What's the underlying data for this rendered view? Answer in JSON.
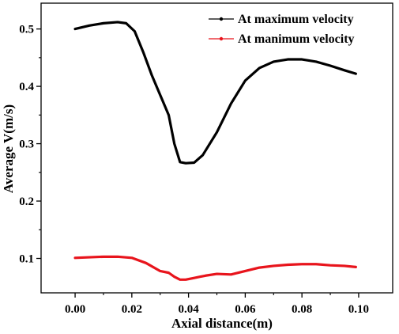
{
  "chart_data": {
    "type": "line",
    "title": "",
    "xlabel": "Axial distance(m)",
    "ylabel": "Average V(m/s)",
    "xlim": [
      -0.012,
      0.112
    ],
    "ylim": [
      0.04,
      0.545
    ],
    "x_ticks": [
      0.0,
      0.02,
      0.04,
      0.06,
      0.08,
      0.1
    ],
    "x_tick_labels": [
      "0.00",
      "0.02",
      "0.04",
      "0.06",
      "0.08",
      "0.10"
    ],
    "y_ticks": [
      0.1,
      0.2,
      0.3,
      0.4,
      0.5
    ],
    "y_tick_labels": [
      "0.1",
      "0.2",
      "0.3",
      "0.4",
      "0.5"
    ],
    "grid": false,
    "legend_position": "top-right",
    "series": [
      {
        "name": "At maximum velocity",
        "color": "#000000",
        "points": [
          [
            0.0,
            0.5
          ],
          [
            0.005,
            0.506
          ],
          [
            0.01,
            0.51
          ],
          [
            0.015,
            0.512
          ],
          [
            0.018,
            0.51
          ],
          [
            0.021,
            0.496
          ],
          [
            0.024,
            0.46
          ],
          [
            0.027,
            0.42
          ],
          [
            0.03,
            0.385
          ],
          [
            0.033,
            0.35
          ],
          [
            0.035,
            0.3
          ],
          [
            0.037,
            0.268
          ],
          [
            0.039,
            0.266
          ],
          [
            0.042,
            0.267
          ],
          [
            0.045,
            0.28
          ],
          [
            0.05,
            0.32
          ],
          [
            0.055,
            0.37
          ],
          [
            0.06,
            0.41
          ],
          [
            0.065,
            0.432
          ],
          [
            0.07,
            0.443
          ],
          [
            0.075,
            0.447
          ],
          [
            0.08,
            0.447
          ],
          [
            0.085,
            0.443
          ],
          [
            0.09,
            0.436
          ],
          [
            0.095,
            0.428
          ],
          [
            0.099,
            0.422
          ]
        ]
      },
      {
        "name": "At manimum velocity",
        "color": "#e8141c",
        "points": [
          [
            0.0,
            0.101
          ],
          [
            0.005,
            0.102
          ],
          [
            0.01,
            0.103
          ],
          [
            0.015,
            0.103
          ],
          [
            0.02,
            0.101
          ],
          [
            0.025,
            0.092
          ],
          [
            0.03,
            0.078
          ],
          [
            0.033,
            0.075
          ],
          [
            0.035,
            0.068
          ],
          [
            0.037,
            0.063
          ],
          [
            0.039,
            0.063
          ],
          [
            0.042,
            0.066
          ],
          [
            0.046,
            0.07
          ],
          [
            0.05,
            0.073
          ],
          [
            0.055,
            0.072
          ],
          [
            0.06,
            0.078
          ],
          [
            0.065,
            0.084
          ],
          [
            0.07,
            0.087
          ],
          [
            0.075,
            0.089
          ],
          [
            0.08,
            0.09
          ],
          [
            0.085,
            0.09
          ],
          [
            0.09,
            0.088
          ],
          [
            0.095,
            0.087
          ],
          [
            0.099,
            0.085
          ]
        ]
      }
    ]
  }
}
